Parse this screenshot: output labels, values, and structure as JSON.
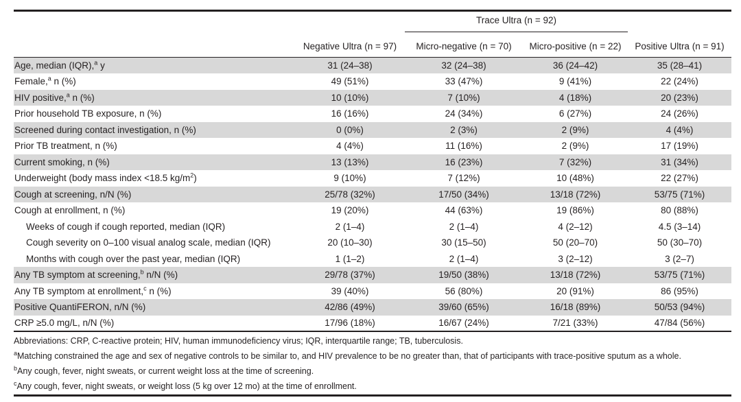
{
  "colors": {
    "shaded_row": "#d8d8d8",
    "rule": "#231f20",
    "text": "#231f20"
  },
  "table": {
    "span_header": {
      "label": "Trace Ultra (n = 92)"
    },
    "columns": [
      "",
      "Negative Ultra (n = 97)",
      "Micro-negative (n = 70)",
      "Micro-positive (n = 22)",
      "Positive Ultra (n = 91)"
    ],
    "rows": [
      {
        "label": "Age, median (IQR),^{a} y",
        "shaded": true,
        "indent": false,
        "values": [
          "31 (24–38)",
          "32 (24–38)",
          "36 (24–42)",
          "35 (28–41)"
        ]
      },
      {
        "label": "Female,^{a} n (%)",
        "shaded": false,
        "indent": false,
        "values": [
          "49 (51%)",
          "33 (47%)",
          "9 (41%)",
          "22 (24%)"
        ]
      },
      {
        "label": "HIV positive,^{a} n (%)",
        "shaded": true,
        "indent": false,
        "values": [
          "10 (10%)",
          "7 (10%)",
          "4 (18%)",
          "20 (23%)"
        ]
      },
      {
        "label": "Prior household TB exposure, n (%)",
        "shaded": false,
        "indent": false,
        "values": [
          "16 (16%)",
          "24 (34%)",
          "6 (27%)",
          "24 (26%)"
        ]
      },
      {
        "label": "Screened during contact investigation, n (%)",
        "shaded": true,
        "indent": false,
        "values": [
          "0 (0%)",
          "2 (3%)",
          "2 (9%)",
          "4 (4%)"
        ]
      },
      {
        "label": "Prior TB treatment, n (%)",
        "shaded": false,
        "indent": false,
        "values": [
          "4 (4%)",
          "11 (16%)",
          "2 (9%)",
          "17 (19%)"
        ]
      },
      {
        "label": "Current smoking, n (%)",
        "shaded": true,
        "indent": false,
        "values": [
          "13 (13%)",
          "16 (23%)",
          "7 (32%)",
          "31 (34%)"
        ]
      },
      {
        "label": "Underweight (body mass index <18.5 kg/m^{2})",
        "shaded": false,
        "indent": false,
        "values": [
          "9 (10%)",
          "7 (12%)",
          "10 (48%)",
          "22 (27%)"
        ]
      },
      {
        "label": "Cough at screening, n/N (%)",
        "shaded": true,
        "indent": false,
        "values": [
          "25/78 (32%)",
          "17/50 (34%)",
          "13/18 (72%)",
          "53/75 (71%)"
        ]
      },
      {
        "label": "Cough at enrollment, n (%)",
        "shaded": false,
        "indent": false,
        "values": [
          "19 (20%)",
          "44 (63%)",
          "19 (86%)",
          "80 (88%)"
        ]
      },
      {
        "label": "Weeks of cough if cough reported, median (IQR)",
        "shaded": false,
        "indent": true,
        "values": [
          "2 (1–4)",
          "2 (1–4)",
          "4 (2–12)",
          "4.5 (3–14)"
        ]
      },
      {
        "label": "Cough severity on 0–100 visual analog scale, median (IQR)",
        "shaded": false,
        "indent": true,
        "values": [
          "20 (10–30)",
          "30 (15–50)",
          "50 (20–70)",
          "50 (30–70)"
        ]
      },
      {
        "label": "Months with cough over the past year, median (IQR)",
        "shaded": false,
        "indent": true,
        "values": [
          "1 (1–2)",
          "2 (1–4)",
          "3 (2–12)",
          "3 (2–7)"
        ]
      },
      {
        "label": "Any TB symptom at screening,^{b} n/N (%)",
        "shaded": true,
        "indent": false,
        "values": [
          "29/78 (37%)",
          "19/50 (38%)",
          "13/18 (72%)",
          "53/75 (71%)"
        ]
      },
      {
        "label": "Any TB symptom at enrollment,^{c} n (%)",
        "shaded": false,
        "indent": false,
        "values": [
          "39 (40%)",
          "56 (80%)",
          "20 (91%)",
          "86 (95%)"
        ]
      },
      {
        "label": "Positive QuantiFERON, n/N (%)",
        "shaded": true,
        "indent": false,
        "values": [
          "42/86 (49%)",
          "39/60 (65%)",
          "16/18 (89%)",
          "50/53 (94%)"
        ]
      },
      {
        "label": "CRP ≥5.0 mg/L, n/N (%)",
        "shaded": false,
        "indent": false,
        "values": [
          "17/96 (18%)",
          "16/67 (24%)",
          "7/21 (33%)",
          "47/84 (56%)"
        ]
      }
    ],
    "footnotes": [
      {
        "sup": "",
        "text": "Abbreviations: CRP, C-reactive protein; HIV, human immunodeficiency virus; IQR, interquartile range; TB, tuberculosis."
      },
      {
        "sup": "a",
        "text": "Matching constrained the age and sex of negative controls to be similar to, and HIV prevalence to be no greater than, that of participants with trace-positive sputum as a whole."
      },
      {
        "sup": "b",
        "text": "Any cough, fever, night sweats, or current weight loss at the time of screening."
      },
      {
        "sup": "c",
        "text": "Any cough, fever, night sweats, or weight loss (5 kg over 12 mo) at the time of enrollment."
      }
    ]
  }
}
